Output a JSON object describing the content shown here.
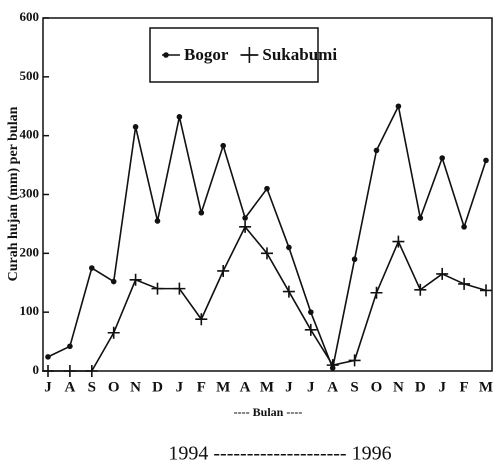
{
  "chart_data": {
    "type": "line",
    "y_label": "Curah hujan (mm) per bulan",
    "x_label": "---- Bulan ----",
    "period_label": "1994 -------------------- 1996",
    "categories": [
      "J",
      "A",
      "S",
      "O",
      "N",
      "D",
      "J",
      "F",
      "M",
      "A",
      "M",
      "J",
      "J",
      "A",
      "S",
      "O",
      "N",
      "D",
      "J",
      "F",
      "M"
    ],
    "series": [
      {
        "name": "Bogor",
        "color": "#111111",
        "marker": "circle",
        "values": [
          24,
          42,
          175,
          152,
          415,
          255,
          432,
          269,
          383,
          260,
          310,
          210,
          100,
          5,
          190,
          375,
          450,
          260,
          362,
          245,
          358
        ]
      },
      {
        "name": "Sukabumi",
        "color": "#111111",
        "marker": "plus",
        "values": [
          0,
          0,
          0,
          65,
          155,
          140,
          140,
          88,
          170,
          245,
          200,
          135,
          70,
          10,
          18,
          133,
          220,
          138,
          165,
          148,
          137
        ]
      }
    ],
    "ylim": [
      0,
      600
    ],
    "yticks": [
      0,
      100,
      200,
      300,
      400,
      500,
      600
    ],
    "legend": "top"
  }
}
